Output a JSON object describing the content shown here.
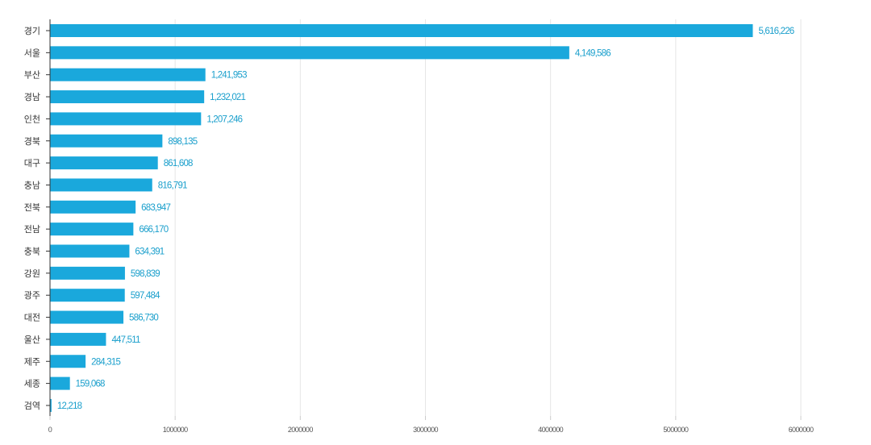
{
  "chart_data": {
    "type": "bar",
    "orientation": "horizontal",
    "title": "",
    "xlabel": "",
    "ylabel": "",
    "categories": [
      "경기",
      "서울",
      "부산",
      "경남",
      "인천",
      "경북",
      "대구",
      "충남",
      "전북",
      "전남",
      "충북",
      "강원",
      "광주",
      "대전",
      "울산",
      "제주",
      "세종",
      "검역"
    ],
    "values": [
      5616226,
      4149586,
      1241953,
      1232021,
      1207246,
      898135,
      861608,
      816791,
      683947,
      666170,
      634391,
      598839,
      597484,
      586730,
      447511,
      284315,
      159068,
      12218
    ],
    "data_labels": [
      "5,616,226",
      "4,149,586",
      "1,241,953",
      "1,232,021",
      "1,207,246",
      "898,135",
      "861,608",
      "816,791",
      "683,947",
      "666,170",
      "634,391",
      "598,839",
      "597,484",
      "586,730",
      "447,511",
      "284,315",
      "159,068",
      "12,218"
    ],
    "x_ticks": [
      0,
      1000000,
      2000000,
      3000000,
      4000000,
      5000000,
      6000000
    ],
    "x_tick_labels": [
      "0",
      "1000000",
      "2000000",
      "3000000",
      "4000000",
      "5000000",
      "6000000"
    ],
    "xlim": [
      0,
      6000000
    ],
    "grid": "vertical",
    "legend": "none",
    "colors": {
      "bar": "#1aa8dc",
      "label": "#1a9fcc",
      "grid": "#e6e6e6",
      "axis": "#333333"
    }
  }
}
